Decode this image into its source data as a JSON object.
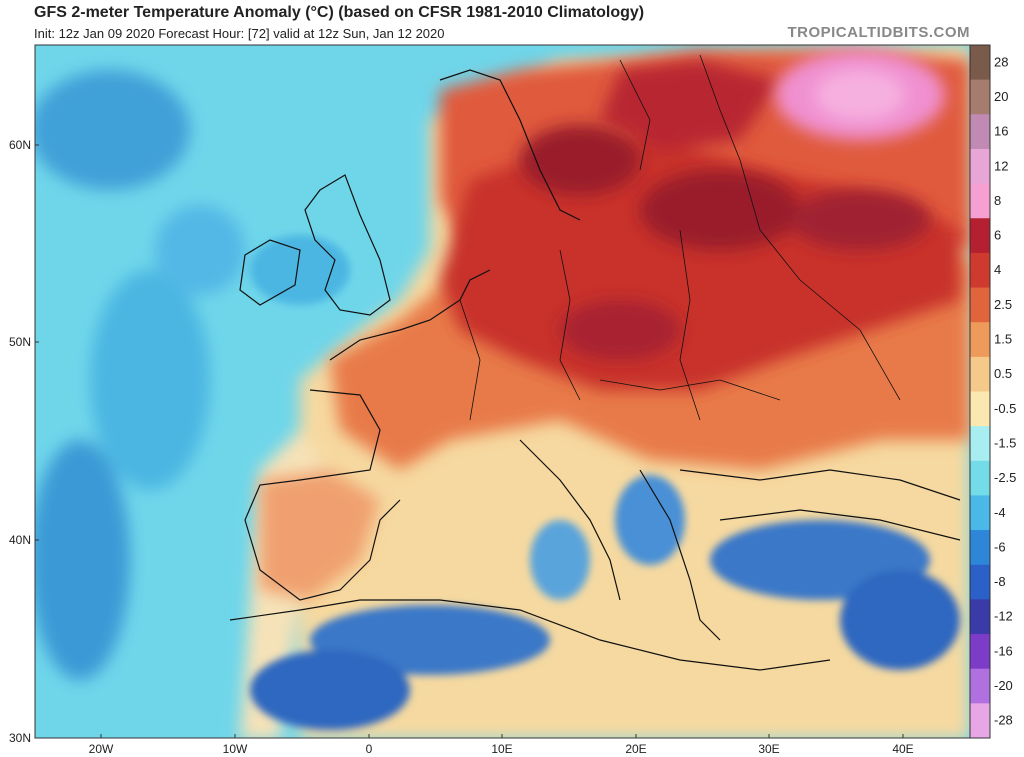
{
  "header": {
    "title": "GFS 2-meter Temperature Anomaly (°C) (based on CFSR 1981-2010 Climatology)",
    "subtitle": "Init: 12z Jan 09 2020   Forecast Hour: [72]   valid at 12z Sun, Jan 12 2020",
    "brand": "TROPICALTIDBITS.COM"
  },
  "axes": {
    "lat_labels": [
      "60N",
      "50N",
      "40N",
      "30N"
    ],
    "lon_labels": [
      "20W",
      "10W",
      "0",
      "10E",
      "20E",
      "30E",
      "40E"
    ]
  },
  "colorbar": {
    "labels": [
      "28",
      "20",
      "16",
      "12",
      "8",
      "6",
      "4",
      "2.5",
      "1.5",
      "0.5",
      "-0.5",
      "-1.5",
      "-2.5",
      "-4",
      "-6",
      "-8",
      "-12",
      "-16",
      "-20",
      "-28"
    ],
    "colors": [
      "#7a5a4a",
      "#a57c6e",
      "#c08ab3",
      "#e7a6d6",
      "#f5a0d0",
      "#b42030",
      "#cf3a2e",
      "#e0643c",
      "#ee9a5a",
      "#f5c98a",
      "#fbe8b0",
      "#a8eef0",
      "#74dce8",
      "#4ab8e8",
      "#2e86d8",
      "#2a60c8",
      "#3a3aa8",
      "#7d3cc8",
      "#b070e0",
      "#e7a6e6"
    ]
  },
  "colors": {
    "ocean_cold": "#6fd6ea",
    "ocean_deep": "#3fa0d8",
    "warm_light": "#f6d9a0",
    "warm": "#e87a4a",
    "hot": "#c8322c",
    "very_hot": "#9a1e2a",
    "pink": "#f090d0",
    "cold": "#3a78c8"
  }
}
